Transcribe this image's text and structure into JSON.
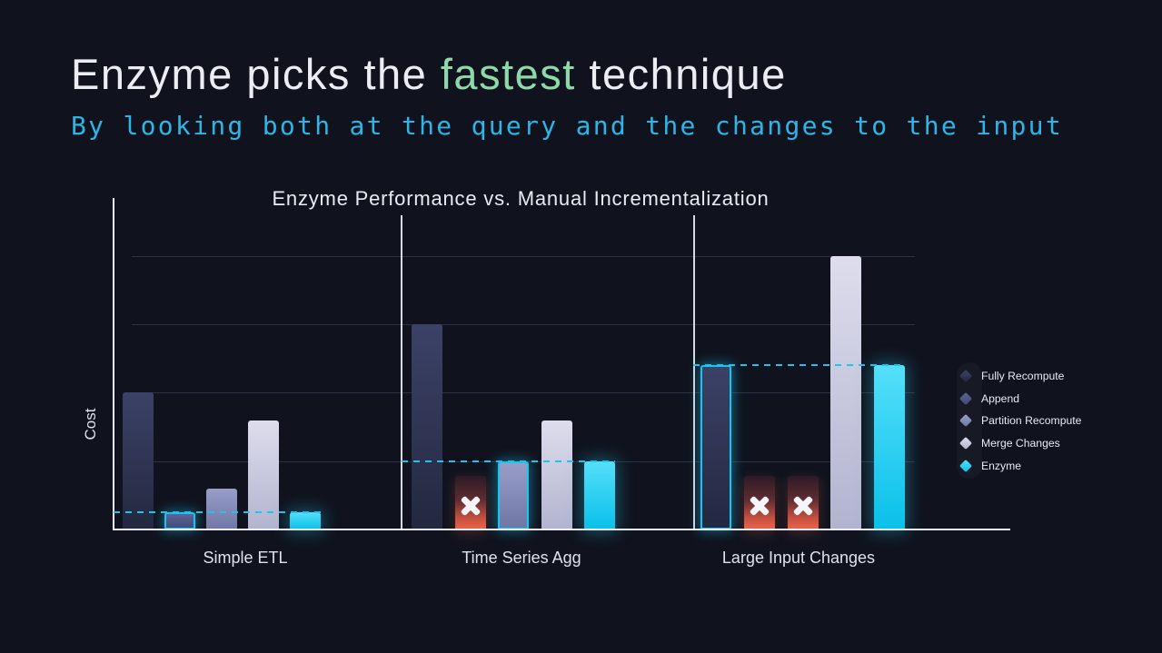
{
  "page": {
    "background": "#10131e"
  },
  "header": {
    "title_prefix": "Enzyme picks the ",
    "title_highlight": "fastest",
    "title_suffix": " technique",
    "subtitle": "By looking both at the query and the changes to the input"
  },
  "colors": {
    "title_text": "#ecedf3",
    "title_highlight": "#8ed9a9",
    "subtitle_cyan": "#2eb5e5",
    "enzyme_cyan": "#2ecdf3",
    "picked_outline": "#1ac4f0",
    "failed_red": "#ec654a",
    "axis": "#edeff6"
  },
  "chart_data": {
    "type": "bar",
    "title": "Enzyme Performance vs. Manual Incrementalization",
    "xlabel": "",
    "ylabel": "Cost",
    "categories": [
      "Simple ETL",
      "Time Series Agg",
      "Large Input Changes"
    ],
    "series": [
      {
        "name": "Fully Recompute",
        "values": [
          2.0,
          3.0,
          2.4
        ],
        "failed": [
          false,
          false,
          false
        ],
        "picked": [
          false,
          false,
          true
        ],
        "gradient": [
          "#3c4267",
          "#232840"
        ]
      },
      {
        "name": "Append",
        "values": [
          0.25,
          0.78,
          0.78
        ],
        "failed": [
          false,
          true,
          true
        ],
        "picked": [
          true,
          false,
          false
        ],
        "gradient": [
          "#5c6499",
          "#424a77"
        ]
      },
      {
        "name": "Partition Recompute",
        "values": [
          0.6,
          1.0,
          0.78
        ],
        "failed": [
          false,
          false,
          true
        ],
        "picked": [
          false,
          true,
          false
        ],
        "gradient": [
          "#989ec7",
          "#7077a5"
        ]
      },
      {
        "name": "Merge Changes",
        "values": [
          1.6,
          1.6,
          4.0
        ],
        "failed": [
          false,
          false,
          false
        ],
        "picked": [
          false,
          false,
          false
        ],
        "gradient": [
          "#dedded",
          "#b2b4cf"
        ]
      },
      {
        "name": "Enzyme",
        "values": [
          0.25,
          1.0,
          2.4
        ],
        "failed": [
          false,
          false,
          false
        ],
        "picked": [
          false,
          false,
          false
        ],
        "gradient": [
          "#55dffa",
          "#0ac0e9"
        ]
      }
    ],
    "enzyme_reference_lines": [
      0.25,
      1.0,
      2.4
    ],
    "failed_marker": "white-x-on-red-bar",
    "picked_marker": "cyan-outline",
    "ylim": [
      0,
      4.85
    ],
    "grid_values": [
      1,
      2,
      3,
      4
    ],
    "grid": true,
    "y_tick_labels": [],
    "legend_position": "right"
  }
}
